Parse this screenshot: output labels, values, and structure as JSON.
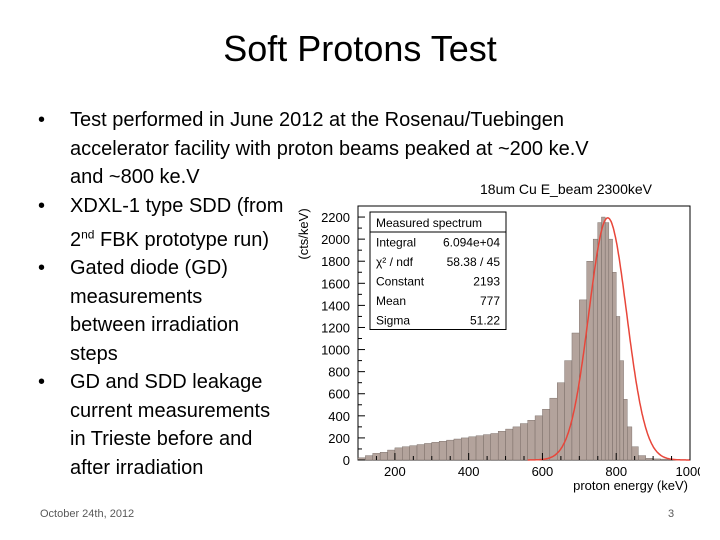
{
  "slide": {
    "title": "Soft Protons Test",
    "bullets": [
      {
        "html": "Test performed in June 2012 at the Rosenau/Tuebingen<br>accelerator facility with proton beams peaked at ~200 ke.V<br>and ~800 ke.V"
      },
      {
        "html": "XDXL-1 type SDD (from<br>2<sup>nd</sup> FBK prototype run)"
      },
      {
        "html": "Gated diode (GD)<br>measurements<br>between irradiation<br>steps"
      },
      {
        "html": "GD and SDD leakage<br>current measurements<br>in Trieste before and<br>after irradiation"
      }
    ],
    "bullet_texts": [
      "Test performed in June 2012 at the Rosenau/Tuebingen accelerator facility with proton beams peaked at ~200 ke.V and ~800 ke.V",
      "XDXL-1 type SDD (from 2nd FBK prototype run)",
      "Gated diode (GD) measurements between irradiation steps",
      "GD and SDD leakage current measurements in Trieste before and after irradiation"
    ],
    "footer_date": "October 24th, 2012",
    "page_number": "3"
  },
  "chart_data": {
    "type": "bar",
    "title": "18um Cu E_beam 2300keV",
    "xlabel": "proton energy (keV)",
    "ylabel": "(cts/keV)",
    "xlim": [
      100,
      1000
    ],
    "ylim": [
      0,
      2300
    ],
    "xticks": [
      200,
      400,
      600,
      800,
      1000
    ],
    "yticks": [
      0,
      200,
      400,
      600,
      800,
      1000,
      1200,
      1400,
      1600,
      1800,
      2000,
      2200
    ],
    "histogram": {
      "x": [
        110,
        130,
        150,
        170,
        190,
        210,
        230,
        250,
        270,
        290,
        310,
        330,
        350,
        370,
        390,
        410,
        430,
        450,
        470,
        490,
        510,
        530,
        550,
        570,
        590,
        610,
        630,
        650,
        670,
        690,
        710,
        730,
        745,
        755,
        765,
        775,
        785,
        795,
        805,
        815,
        825,
        835,
        850,
        870,
        890,
        910,
        930,
        950,
        970,
        990
      ],
      "y": [
        20,
        40,
        60,
        70,
        90,
        110,
        120,
        130,
        140,
        150,
        160,
        170,
        180,
        190,
        200,
        210,
        220,
        230,
        240,
        260,
        280,
        300,
        330,
        360,
        400,
        460,
        560,
        700,
        900,
        1150,
        1450,
        1800,
        2000,
        2150,
        2200,
        2150,
        2000,
        1700,
        1300,
        900,
        550,
        300,
        120,
        40,
        15,
        10,
        8,
        5,
        3,
        2
      ],
      "color": "#b3a39c"
    },
    "fit": {
      "function": "gaussian",
      "constant": 2193,
      "mean": 777,
      "sigma": 51.22,
      "color": "#e8463a"
    },
    "stats_box": {
      "title": "Measured spectrum",
      "rows": [
        {
          "label": "Integral",
          "value": "6.094e+04"
        },
        {
          "label": "χ² / ndf",
          "value": "58.38 / 45"
        },
        {
          "label": "Constant",
          "value": "2193"
        },
        {
          "label": "Mean",
          "value": "777"
        },
        {
          "label": "Sigma",
          "value": "51.22"
        }
      ]
    }
  }
}
